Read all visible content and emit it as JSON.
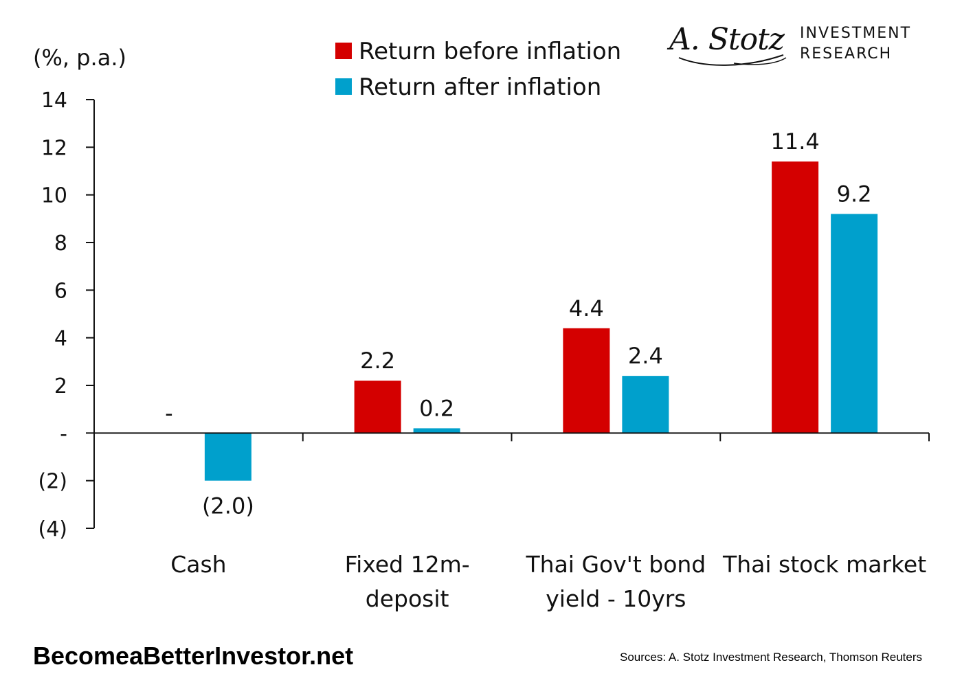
{
  "chart_data": {
    "type": "bar",
    "unit_label": "(%, p.a.)",
    "categories": [
      [
        "Cash"
      ],
      [
        "Fixed 12m-",
        "deposit"
      ],
      [
        "Thai Gov't bond",
        "yield - 10yrs"
      ],
      [
        "Thai stock market"
      ]
    ],
    "series": [
      {
        "name": "Return before inflation",
        "color": "#d40000",
        "values": [
          0,
          2.2,
          4.4,
          11.4
        ],
        "labels": [
          "-",
          "2.2",
          "4.4",
          "11.4"
        ]
      },
      {
        "name": "Return after inflation",
        "color": "#00a0cc",
        "values": [
          -2.0,
          0.2,
          2.4,
          9.2
        ],
        "labels": [
          "(2.0)",
          "0.2",
          "2.4",
          "9.2"
        ]
      }
    ],
    "ylim": [
      -4,
      14
    ],
    "yticks": [
      14,
      12,
      10,
      8,
      6,
      4,
      2,
      0,
      -2,
      -4
    ],
    "ytick_labels": [
      "14",
      "12",
      "10",
      "8",
      "6",
      "4",
      "2",
      "-",
      "(2)",
      "(4)"
    ],
    "legend_position": "top-center"
  },
  "logo": {
    "signature": "A. Stotz",
    "line1": "INVESTMENT",
    "line2": "RESEARCH"
  },
  "footer": {
    "website": "BecomeaBetterInvestor.net",
    "sources": "Sources: A. Stotz Investment Research, Thomson Reuters"
  }
}
